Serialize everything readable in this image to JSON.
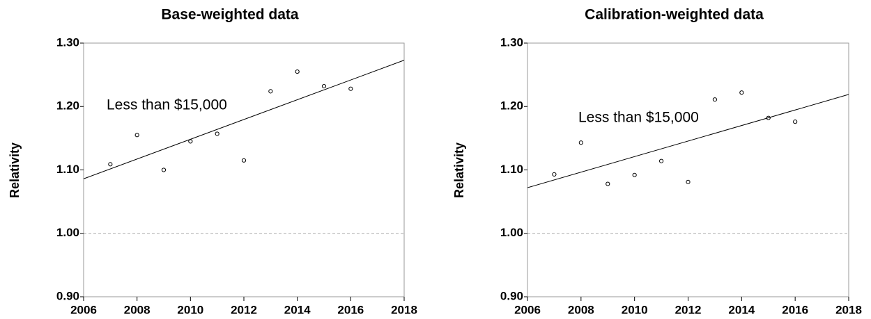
{
  "chart_data": [
    {
      "type": "scatter",
      "title": "Base-weighted data",
      "y_label": "Relativity",
      "annotation": "Less than $15,000",
      "series": [
        {
          "name": null,
          "color": "#000000",
          "x": [
            2007,
            2008,
            2009,
            2010,
            2011,
            2012,
            2013,
            2014,
            2015,
            2016
          ],
          "values": [
            1.109,
            1.155,
            1.1,
            1.145,
            1.157,
            1.115,
            1.224,
            1.255,
            1.232,
            1.228
          ]
        }
      ],
      "trend": {
        "x": [
          2006,
          2018
        ],
        "values": [
          1.086,
          1.273
        ]
      },
      "reference_line": 1.0,
      "xlim": [
        2006,
        2018
      ],
      "xticks": [
        2006,
        2008,
        2010,
        2012,
        2014,
        2016,
        2018
      ],
      "ylim": [
        0.9,
        1.3
      ],
      "yticks": [
        {
          "value": 0.9,
          "label": "0.90"
        },
        {
          "value": 1.0,
          "label": "1.00"
        },
        {
          "value": 1.1,
          "label": "1.10"
        },
        {
          "value": 1.2,
          "label": "1.20"
        },
        {
          "value": 1.3,
          "label": "1.30"
        }
      ]
    },
    {
      "type": "scatter",
      "title": "Calibration-weighted data",
      "y_label": "Relativity",
      "annotation": "Less than $15,000",
      "series": [
        {
          "name": null,
          "color": "#000000",
          "x": [
            2007,
            2008,
            2009,
            2010,
            2011,
            2012,
            2013,
            2014,
            2015,
            2016
          ],
          "values": [
            1.093,
            1.143,
            1.078,
            1.092,
            1.114,
            1.081,
            1.211,
            1.222,
            1.182,
            1.176
          ]
        }
      ],
      "trend": {
        "x": [
          2006,
          2018
        ],
        "values": [
          1.072,
          1.219
        ]
      },
      "reference_line": 1.0,
      "xlim": [
        2006,
        2018
      ],
      "xticks": [
        2006,
        2008,
        2010,
        2012,
        2014,
        2016,
        2018
      ],
      "ylim": [
        0.9,
        1.3
      ],
      "yticks": [
        {
          "value": 0.9,
          "label": "0.90"
        },
        {
          "value": 1.0,
          "label": "1.00"
        },
        {
          "value": 1.1,
          "label": "1.10"
        },
        {
          "value": 1.2,
          "label": "1.20"
        },
        {
          "value": 1.3,
          "label": "1.30"
        }
      ]
    }
  ]
}
